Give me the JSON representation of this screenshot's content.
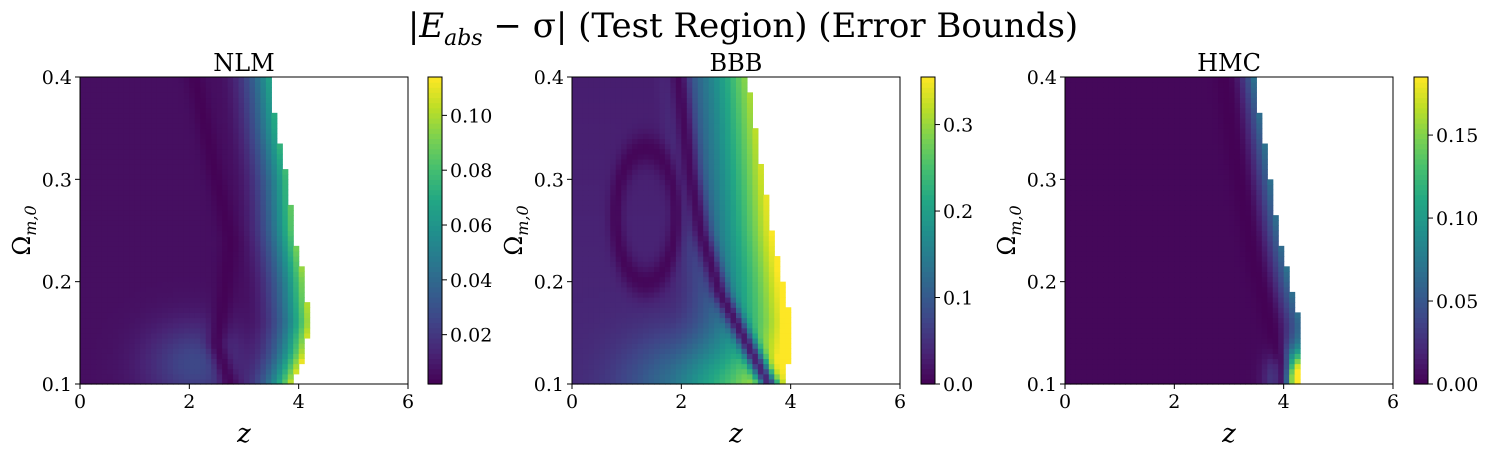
{
  "figure": {
    "title_main": "|E",
    "title_sub": "abs",
    "title_rest": " − σ| (Test Region) (Error Bounds)"
  },
  "chart_data": [
    {
      "type": "heatmap",
      "title": "NLM",
      "xlabel": "z",
      "ylabel": "Ω",
      "ylabel_sub": "m,0",
      "xlim": [
        0,
        6
      ],
      "ylim": [
        0.1,
        0.4
      ],
      "xticks": [
        "0",
        "2",
        "4",
        "6"
      ],
      "yticks": [
        "0.1",
        "0.2",
        "0.3",
        "0.4"
      ],
      "colormap": "viridis",
      "colorbar": {
        "min": 0.002,
        "max": 0.114,
        "ticks": [
          "0.02",
          "0.04",
          "0.06",
          "0.08",
          "0.10"
        ],
        "tick_values": [
          0.02,
          0.04,
          0.06,
          0.08,
          0.1
        ]
      },
      "region_boundary": {
        "omega": [
          0.1,
          0.13,
          0.16,
          0.2,
          0.25,
          0.3,
          0.35,
          0.4
        ],
        "z_max": [
          3.9,
          4.1,
          4.2,
          4.1,
          3.9,
          3.8,
          3.6,
          3.45
        ]
      },
      "min_error_curve": {
        "omega": [
          0.1,
          0.14,
          0.19,
          0.24,
          0.3,
          0.4
        ],
        "z": [
          2.75,
          2.5,
          2.65,
          2.75,
          2.5,
          2.1
        ]
      }
    },
    {
      "type": "heatmap",
      "title": "BBB",
      "xlabel": "z",
      "ylabel": "Ω",
      "ylabel_sub": "m,0",
      "xlim": [
        0,
        6
      ],
      "ylim": [
        0.1,
        0.4
      ],
      "xticks": [
        "0",
        "2",
        "4",
        "6"
      ],
      "yticks": [
        "0.1",
        "0.2",
        "0.3",
        "0.4"
      ],
      "colormap": "viridis",
      "colorbar": {
        "min": 0.0,
        "max": 0.355,
        "ticks": [
          "0.0",
          "0.1",
          "0.2",
          "0.3"
        ],
        "tick_values": [
          0.0,
          0.1,
          0.2,
          0.3
        ]
      },
      "region_boundary": {
        "omega": [
          0.1,
          0.13,
          0.16,
          0.2,
          0.25,
          0.3,
          0.35,
          0.4
        ],
        "z_max": [
          3.85,
          4.0,
          4.0,
          3.85,
          3.65,
          3.5,
          3.35,
          3.2
        ]
      },
      "min_error_curve": {
        "omega": [
          0.1,
          0.14,
          0.19,
          0.25,
          0.31,
          0.4
        ],
        "z": [
          3.6,
          3.2,
          2.7,
          2.35,
          2.15,
          1.95
        ]
      },
      "min_error_loop": {
        "center_z": 1.35,
        "center_omega": 0.265,
        "half_width_z": 0.55,
        "half_height_omega": 0.065
      }
    },
    {
      "type": "heatmap",
      "title": "HMC",
      "xlabel": "z",
      "ylabel": "Ω",
      "ylabel_sub": "m,0",
      "xlim": [
        0,
        6
      ],
      "ylim": [
        0.1,
        0.4
      ],
      "xticks": [
        "0",
        "2",
        "4",
        "6"
      ],
      "yticks": [
        "0.1",
        "0.2",
        "0.3",
        "0.4"
      ],
      "colormap": "viridis",
      "colorbar": {
        "min": 0.0,
        "max": 0.185,
        "ticks": [
          "0.00",
          "0.05",
          "0.10",
          "0.15"
        ],
        "tick_values": [
          0.0,
          0.05,
          0.1,
          0.15
        ]
      },
      "region_boundary": {
        "omega": [
          0.1,
          0.13,
          0.16,
          0.2,
          0.25,
          0.3,
          0.35,
          0.4
        ],
        "z_max": [
          4.35,
          4.35,
          4.3,
          4.1,
          3.9,
          3.75,
          3.6,
          3.45
        ]
      },
      "min_error_curve": {
        "omega": [
          0.12,
          0.17,
          0.22,
          0.28,
          0.34,
          0.4
        ],
        "z": [
          3.95,
          3.7,
          3.45,
          3.25,
          3.05,
          2.9
        ]
      }
    }
  ]
}
